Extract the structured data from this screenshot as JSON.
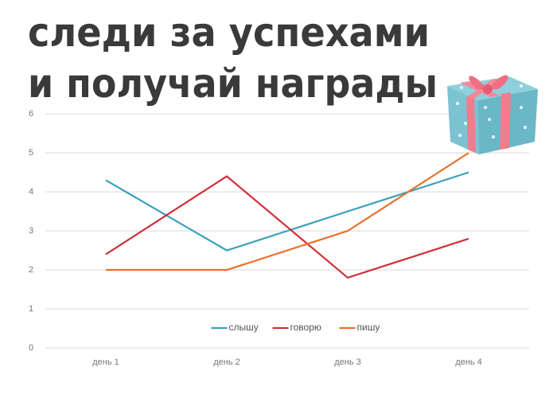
{
  "chart_data": {
    "type": "line",
    "title": [
      "следи за успехами",
      "и получай награды"
    ],
    "categories": [
      "день 1",
      "день 2",
      "день 3",
      "день 4"
    ],
    "series": [
      {
        "name": "слышу",
        "color": "#3aa0bd",
        "values": [
          4.3,
          2.5,
          3.5,
          4.5
        ]
      },
      {
        "name": "говорю",
        "color": "#d0303a",
        "values": [
          2.4,
          4.4,
          1.8,
          2.8
        ]
      },
      {
        "name": "пишу",
        "color": "#e8702a",
        "values": [
          2,
          2,
          3,
          5
        ]
      }
    ],
    "ylim": [
      0,
      6
    ],
    "yticks": [
      0,
      1,
      2,
      3,
      4,
      5,
      6
    ],
    "grid": true,
    "legend": "bottom"
  }
}
